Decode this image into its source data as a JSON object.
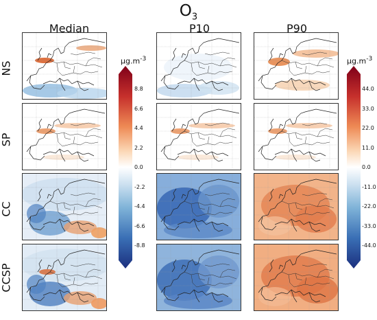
{
  "figure": {
    "title": "O",
    "title_sub": "3",
    "columns": [
      "Median",
      "P10",
      "P90"
    ],
    "rows": [
      "NS",
      "SP",
      "CC",
      "CCSP"
    ]
  },
  "colorbar_median": {
    "unit": "μg.m",
    "unit_sup": "-3",
    "ticks": [
      "8.8",
      "6.6",
      "4.4",
      "2.2",
      "0.0",
      "-2.2",
      "-4.4",
      "-6.6",
      "-8.8"
    ]
  },
  "colorbar_percentile": {
    "unit": "μg.m",
    "unit_sup": "-3",
    "ticks": [
      "44.0",
      "33.0",
      "22.0",
      "11.0",
      "0.0",
      "-11.0",
      "-22.0",
      "-33.0",
      "-44.0"
    ]
  },
  "colors": {
    "strong_negative": "#2a4fa0",
    "weak_negative": "#c9def0",
    "neutral": "#ffffff",
    "weak_positive": "#f4c08a",
    "strong_positive": "#b2182b"
  },
  "panels": [
    {
      "row": "NS",
      "col": "Median",
      "pattern": "ns-median"
    },
    {
      "row": "NS",
      "col": "P10",
      "pattern": "ns-p10"
    },
    {
      "row": "NS",
      "col": "P90",
      "pattern": "ns-p90"
    },
    {
      "row": "SP",
      "col": "Median",
      "pattern": "sp"
    },
    {
      "row": "SP",
      "col": "P10",
      "pattern": "sp"
    },
    {
      "row": "SP",
      "col": "P90",
      "pattern": "sp"
    },
    {
      "row": "CC",
      "col": "Median",
      "pattern": "cc-median"
    },
    {
      "row": "CC",
      "col": "P10",
      "pattern": "cc-p10"
    },
    {
      "row": "CC",
      "col": "P90",
      "pattern": "cc-p90"
    },
    {
      "row": "CCSP",
      "col": "Median",
      "pattern": "ccsp-median"
    },
    {
      "row": "CCSP",
      "col": "P10",
      "pattern": "ccsp-p10"
    },
    {
      "row": "CCSP",
      "col": "P90",
      "pattern": "ccsp-p90"
    }
  ]
}
